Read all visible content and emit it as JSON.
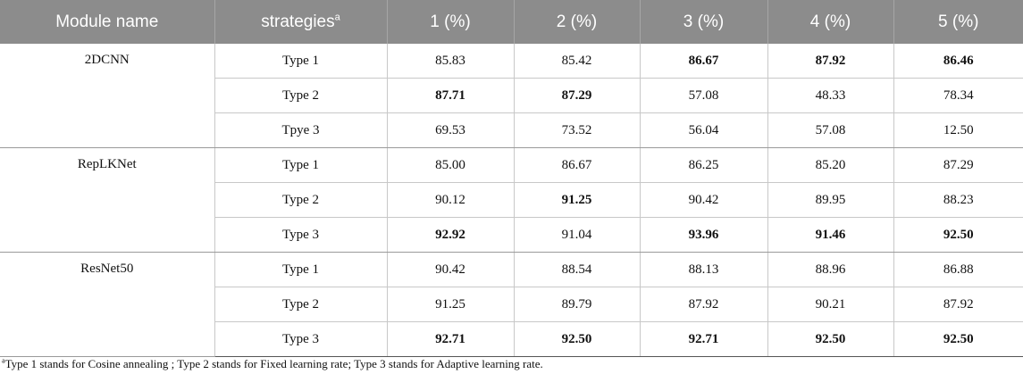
{
  "header": {
    "module_name": "Module name",
    "strategies": "strategies",
    "strategies_mark": "a",
    "col1": "1 (%)",
    "col2": "2 (%)",
    "col3": "3 (%)",
    "col4": "4 (%)",
    "col5": "5 (%)"
  },
  "groups": [
    {
      "module": "2DCNN",
      "rows": [
        {
          "strategy": "Type 1",
          "values": [
            "85.83",
            "85.42",
            "86.67",
            "87.92",
            "86.46"
          ],
          "bold": [
            false,
            false,
            true,
            true,
            true
          ]
        },
        {
          "strategy": "Type 2",
          "values": [
            "87.71",
            "87.29",
            "57.08",
            "48.33",
            "78.34"
          ],
          "bold": [
            true,
            true,
            false,
            false,
            false
          ]
        },
        {
          "strategy": "Tpye 3",
          "values": [
            "69.53",
            "73.52",
            "56.04",
            "57.08",
            "12.50"
          ],
          "bold": [
            false,
            false,
            false,
            false,
            false
          ]
        }
      ]
    },
    {
      "module": "RepLKNet",
      "rows": [
        {
          "strategy": "Type 1",
          "values": [
            "85.00",
            "86.67",
            "86.25",
            "85.20",
            "87.29"
          ],
          "bold": [
            false,
            false,
            false,
            false,
            false
          ]
        },
        {
          "strategy": "Type 2",
          "values": [
            "90.12",
            "91.25",
            "90.42",
            "89.95",
            "88.23"
          ],
          "bold": [
            false,
            true,
            false,
            false,
            false
          ]
        },
        {
          "strategy": "Type 3",
          "values": [
            "92.92",
            "91.04",
            "93.96",
            "91.46",
            "92.50"
          ],
          "bold": [
            true,
            false,
            true,
            true,
            true
          ]
        }
      ]
    },
    {
      "module": "ResNet50",
      "rows": [
        {
          "strategy": "Type 1",
          "values": [
            "90.42",
            "88.54",
            "88.13",
            "88.96",
            "86.88"
          ],
          "bold": [
            false,
            false,
            false,
            false,
            false
          ]
        },
        {
          "strategy": "Type 2",
          "values": [
            "91.25",
            "89.79",
            "87.92",
            "90.21",
            "87.92"
          ],
          "bold": [
            false,
            false,
            false,
            false,
            false
          ]
        },
        {
          "strategy": "Type 3",
          "values": [
            "92.71",
            "92.50",
            "92.71",
            "92.50",
            "92.50"
          ],
          "bold": [
            true,
            true,
            true,
            true,
            true
          ]
        }
      ]
    }
  ],
  "footnote": {
    "mark": "a",
    "text": "Type 1 stands for Cosine annealing ; Type 2 stands for Fixed learning rate; Type 3 stands for Adaptive learning rate."
  }
}
